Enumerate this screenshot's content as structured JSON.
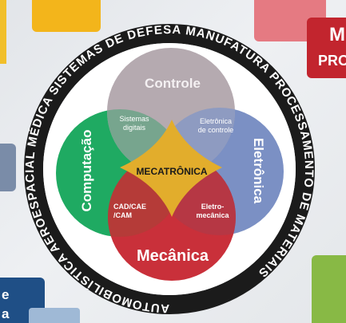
{
  "center_label": "MECATRÔNICA",
  "circles": {
    "controle": {
      "label": "Controle",
      "color": "#b5aab0"
    },
    "computacao": {
      "label": "Computação",
      "color": "#1faa62"
    },
    "eletronica": {
      "label": "Eletrônica",
      "color": "#7b90c4"
    },
    "mecanica": {
      "label": "Mecânica",
      "color": "#c9303a"
    }
  },
  "overlaps": {
    "sistemas_digitais": [
      "Sistemas",
      "digitais"
    ],
    "eletronica_controle": [
      "Eletrônica",
      "de controle"
    ],
    "cad_cae_cam": [
      "CAD/CAE",
      "/CAM"
    ],
    "eletro_mecanica": [
      "Eletro-",
      "mecânica"
    ]
  },
  "ring_text": "AUTOMOBILÍSTICA   AEROESPACIAL   MÉDICA   SISTEMAS DE DEFESA   MANUFATURA   PROCESSAMENTO DE MATERIAIS   ",
  "center_color": "#e2ad2c",
  "background_tiles": {
    "red_box_letter": "M",
    "red_box_word": "PRO",
    "navy_line1": "e",
    "navy_line2": "a"
  }
}
